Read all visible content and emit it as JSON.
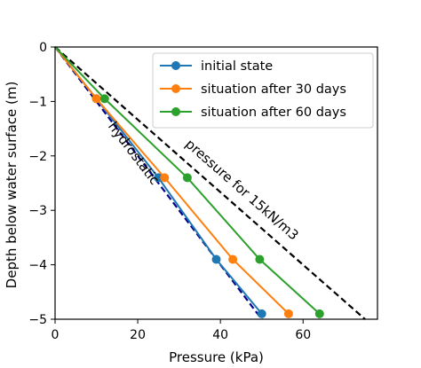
{
  "chart_data": {
    "type": "line",
    "xlabel": "Pressure (kPa)",
    "ylabel": "Depth below water surface (m)",
    "xlim": [
      0,
      78
    ],
    "ylim": [
      -5,
      0
    ],
    "xticks": [
      0,
      20,
      40,
      60
    ],
    "yticks": [
      0,
      -1,
      -2,
      -3,
      -4,
      -5
    ],
    "xtick_labels": [
      "0",
      "20",
      "40",
      "60"
    ],
    "ytick_labels": [
      "0",
      "−1",
      "−2",
      "−3",
      "−4",
      "−5"
    ],
    "grid": false,
    "legend_position": "top-right",
    "series": [
      {
        "name": "initial state",
        "color": "#1f77b4",
        "x": [
          0,
          10,
          25,
          39,
          50
        ],
        "y": [
          0,
          -0.95,
          -2.4,
          -3.9,
          -4.9
        ]
      },
      {
        "name": "situation after 30 days",
        "color": "#ff7f0e",
        "x": [
          0,
          10,
          26.5,
          43,
          56.5
        ],
        "y": [
          0,
          -0.95,
          -2.4,
          -3.9,
          -4.9
        ]
      },
      {
        "name": "situation after 60 days",
        "color": "#2ca02c",
        "x": [
          0,
          12,
          32,
          49.5,
          64
        ],
        "y": [
          0,
          -0.95,
          -2.4,
          -3.9,
          -4.9
        ]
      }
    ],
    "reference_lines": [
      {
        "label": "hydrostatic",
        "color": "#00008b",
        "x": [
          0,
          50
        ],
        "y": [
          0,
          -5
        ]
      },
      {
        "label": "pressure for 15kN/m3",
        "color": "#000000",
        "x": [
          0,
          75
        ],
        "y": [
          0,
          -5
        ]
      }
    ]
  }
}
